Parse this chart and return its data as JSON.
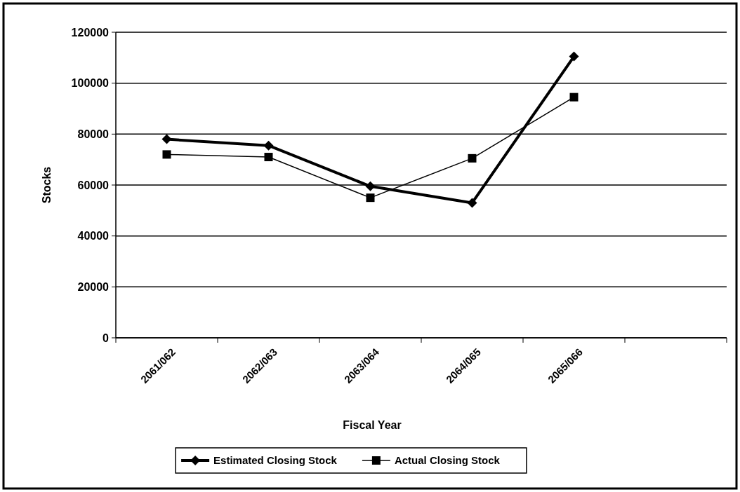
{
  "chart_data": {
    "type": "line",
    "xlabel": "Fiscal Year",
    "ylabel": "Stocks",
    "categories": [
      "2061/062",
      "2062/063",
      "2063/064",
      "2064/065",
      "2065/066",
      null
    ],
    "series": [
      {
        "name": "Estimated Closing Stock",
        "color": "#000000",
        "marker": "diamond",
        "values": [
          78000,
          75500,
          59500,
          53000,
          110500,
          null
        ]
      },
      {
        "name": "Actual Closing Stock",
        "color": "#000000",
        "marker": "square",
        "values": [
          72000,
          71000,
          55000,
          70500,
          94500,
          null
        ]
      }
    ],
    "ylim": [
      0,
      120000
    ],
    "yticks": [
      0,
      20000,
      40000,
      60000,
      80000,
      100000,
      120000
    ],
    "grid": "y",
    "legend": "bottom"
  }
}
